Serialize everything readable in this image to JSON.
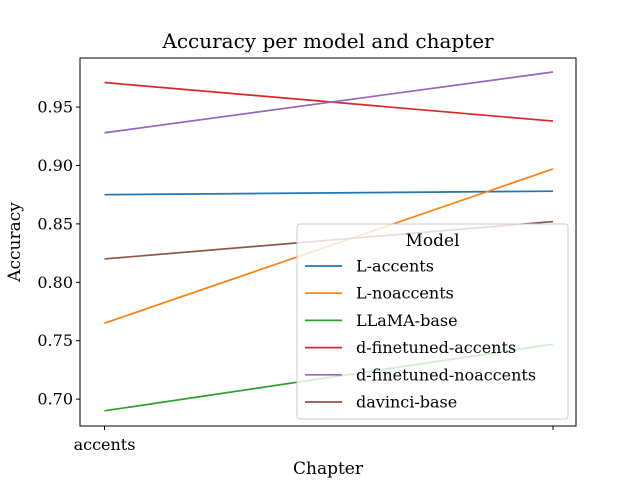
{
  "chart_data": {
    "type": "line",
    "title": "Accuracy per model and chapter",
    "xlabel": "Chapter",
    "ylabel": "Accuracy",
    "categories": [
      "accents",
      ""
    ],
    "ylim": [
      0.677,
      0.992
    ],
    "yticks": [
      0.7,
      0.75,
      0.8,
      0.85,
      0.9,
      0.95
    ],
    "ytick_labels": [
      "0.70",
      "0.75",
      "0.80",
      "0.85",
      "0.90",
      "0.95"
    ],
    "grid": false,
    "legend": {
      "title": "Model",
      "position": "lower-right"
    },
    "series": [
      {
        "name": "L-accents",
        "color": "#1f77b4",
        "values": [
          0.875,
          0.878
        ]
      },
      {
        "name": "L-noaccents",
        "color": "#ff7f0e",
        "values": [
          0.765,
          0.897
        ]
      },
      {
        "name": "LLaMA-base",
        "color": "#2ca02c",
        "values": [
          0.69,
          0.747
        ]
      },
      {
        "name": "d-finetuned-accents",
        "color": "#d62728",
        "values": [
          0.971,
          0.938
        ]
      },
      {
        "name": "d-finetuned-noaccents",
        "color": "#9467bd",
        "values": [
          0.928,
          0.98
        ]
      },
      {
        "name": "davinci-base",
        "color": "#8c564b",
        "values": [
          0.82,
          0.852
        ]
      }
    ]
  }
}
